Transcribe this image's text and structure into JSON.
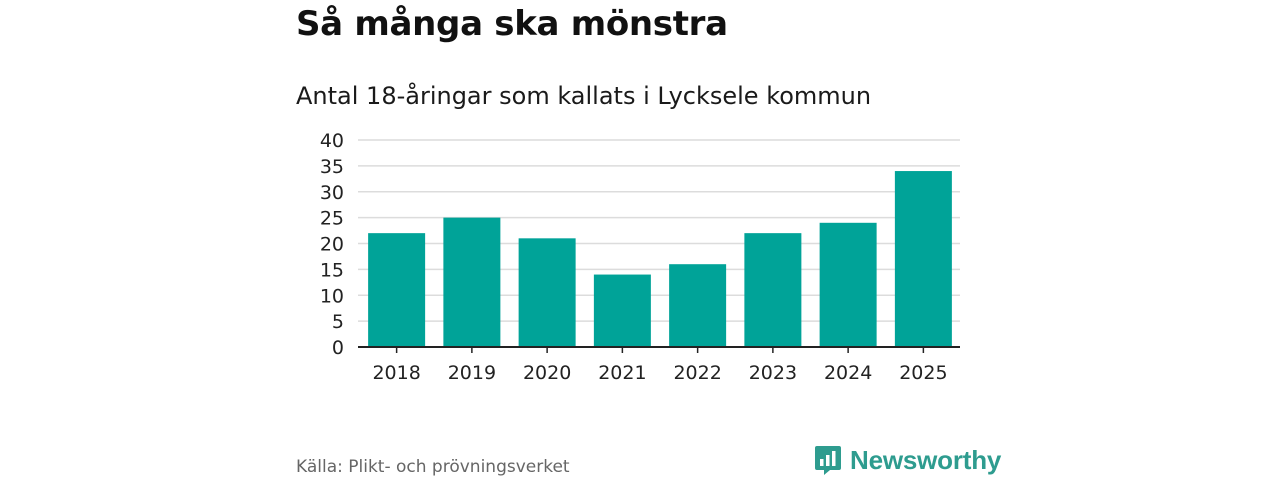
{
  "header": {
    "title": "Så många ska mönstra",
    "subtitle": "Antal 18-åringar som kallats i Lycksele kommun"
  },
  "footer": {
    "source": "Källa: Plikt- och prövningsverket",
    "brand_name": "Newsworthy",
    "brand_icon": "bar-chart-logo-icon"
  },
  "colors": {
    "bar": "#00a398",
    "grid": "#dcdcdc",
    "axis": "#222222",
    "brand": "#2e9c8f"
  },
  "chart_data": {
    "type": "bar",
    "title": "Så många ska mönstra",
    "subtitle": "Antal 18-åringar som kallats i Lycksele kommun",
    "xlabel": "",
    "ylabel": "",
    "categories": [
      "2018",
      "2019",
      "2020",
      "2021",
      "2022",
      "2023",
      "2024",
      "2025"
    ],
    "values": [
      22,
      25,
      21,
      14,
      16,
      22,
      24,
      34
    ],
    "ylim": [
      0,
      40
    ],
    "yticks": [
      0,
      5,
      10,
      15,
      20,
      25,
      30,
      35,
      40
    ],
    "grid": true,
    "legend": "none"
  }
}
